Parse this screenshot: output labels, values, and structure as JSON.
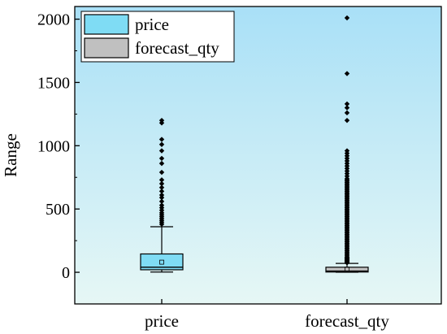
{
  "chart_data": {
    "type": "box",
    "title": "",
    "xlabel": "",
    "ylabel": "Range",
    "ylim": [
      -250,
      2100
    ],
    "yticks": [
      0,
      500,
      1000,
      1500,
      2000
    ],
    "categories": [
      "price",
      "forecast_qty"
    ],
    "legend": {
      "placement": "top-left",
      "entries": [
        "price",
        "forecast_qty"
      ]
    },
    "background_gradient": [
      "#a9e0f7",
      "#e6f7f5"
    ],
    "series": [
      {
        "name": "price",
        "color": "#7fdcf4",
        "whisker_low": 2,
        "q1": 20,
        "median": 40,
        "q3": 145,
        "whisker_high": 360,
        "mean": 80,
        "outliers": [
          380,
          395,
          410,
          425,
          440,
          455,
          470,
          490,
          510,
          530,
          560,
          590,
          610,
          640,
          670,
          700,
          730,
          790,
          860,
          900,
          960,
          1010,
          1050,
          1180,
          1200
        ]
      },
      {
        "name": "forecast_qty",
        "color": "#c0c0c0",
        "whisker_low": 0,
        "q1": 2,
        "median": 10,
        "q3": 40,
        "whisker_high": 70,
        "mean": 25,
        "outliers": [
          75,
          80,
          85,
          90,
          95,
          100,
          105,
          110,
          115,
          120,
          130,
          140,
          150,
          160,
          170,
          180,
          190,
          200,
          210,
          220,
          230,
          240,
          250,
          260,
          270,
          280,
          290,
          300,
          310,
          320,
          330,
          340,
          350,
          360,
          370,
          380,
          390,
          400,
          410,
          420,
          430,
          440,
          450,
          460,
          470,
          480,
          490,
          500,
          510,
          520,
          530,
          540,
          550,
          560,
          570,
          580,
          590,
          600,
          610,
          620,
          630,
          640,
          650,
          660,
          670,
          680,
          690,
          700,
          710,
          720,
          730,
          740,
          760,
          780,
          800,
          820,
          840,
          860,
          880,
          900,
          920,
          940,
          960,
          1200,
          1260,
          1300,
          1330,
          1570,
          2010
        ]
      }
    ]
  }
}
